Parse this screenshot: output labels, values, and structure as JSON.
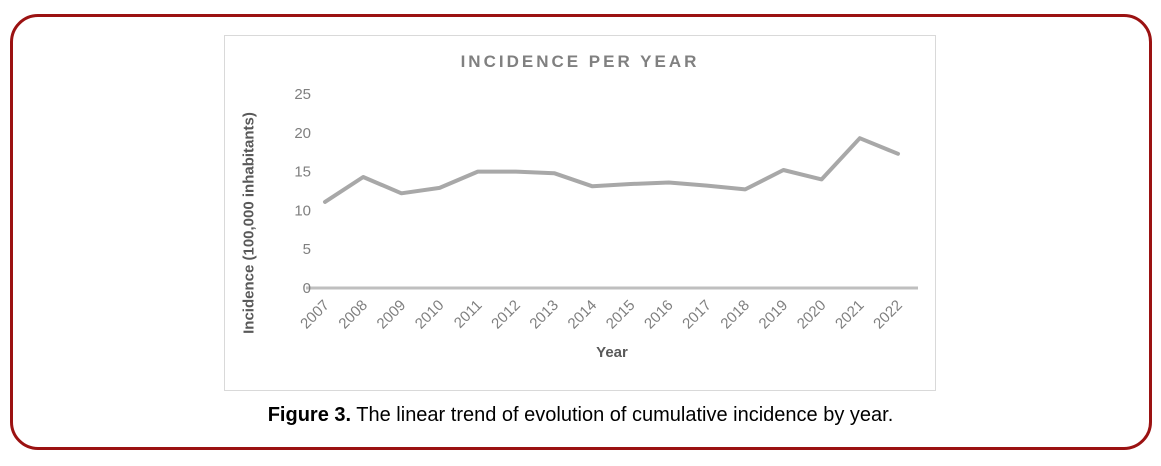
{
  "frame": {
    "border_color": "#9b1212"
  },
  "caption": {
    "label": "Figure 3.",
    "text": "The linear trend of evolution of cumulative incidence by year."
  },
  "chart_data": {
    "type": "line",
    "title": "INCIDENCE PER YEAR",
    "xlabel": "Year",
    "ylabel": "Incidence (100,000 inhabitants)",
    "categories": [
      "2007",
      "2008",
      "2009",
      "2010",
      "2011",
      "2012",
      "2013",
      "2014",
      "2015",
      "2016",
      "2017",
      "2018",
      "2019",
      "2020",
      "2021",
      "2022"
    ],
    "values": [
      11.1,
      14.3,
      12.2,
      12.9,
      15.0,
      15.0,
      14.8,
      13.1,
      13.4,
      13.6,
      13.2,
      12.7,
      15.2,
      14.0,
      19.3,
      17.3
    ],
    "ylim": [
      0,
      25
    ],
    "yticks": [
      0,
      5,
      10,
      15,
      20,
      25
    ],
    "grid": false,
    "legend": false,
    "x_tick_rotation_deg": -45,
    "colors": {
      "line": "#a8a8a8",
      "axis_line": "#bfbfbf",
      "tick_labels": "#7f7f7f",
      "axis_titles": "#595959",
      "title": "#808080",
      "panel_border": "#d9d9d9"
    }
  }
}
